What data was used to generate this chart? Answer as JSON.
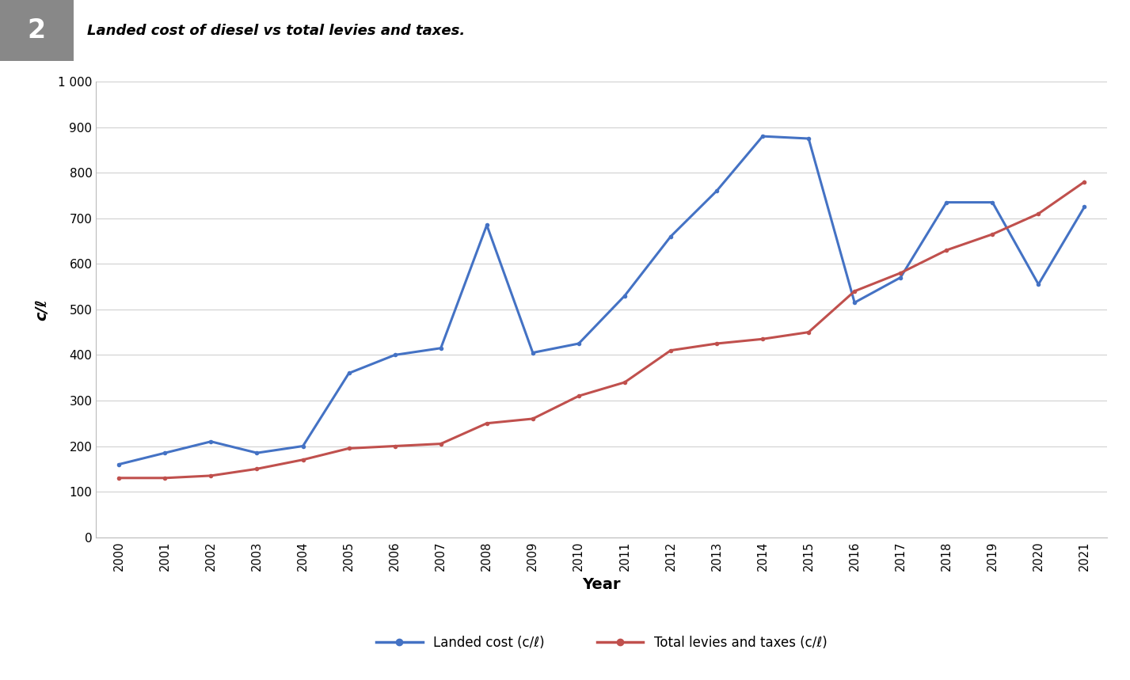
{
  "years": [
    2000,
    2001,
    2002,
    2003,
    2004,
    2005,
    2006,
    2007,
    2008,
    2009,
    2010,
    2011,
    2012,
    2013,
    2014,
    2015,
    2016,
    2017,
    2018,
    2019,
    2020,
    2021
  ],
  "landed_cost": [
    160,
    185,
    210,
    185,
    200,
    360,
    400,
    415,
    685,
    405,
    425,
    530,
    660,
    760,
    880,
    875,
    515,
    570,
    735,
    735,
    555,
    725
  ],
  "total_levies": [
    130,
    130,
    135,
    150,
    170,
    195,
    200,
    205,
    250,
    260,
    310,
    340,
    410,
    425,
    435,
    450,
    540,
    580,
    630,
    665,
    710,
    780
  ],
  "landed_color": "#4472C4",
  "levies_color": "#C0504D",
  "title": "Landed cost of diesel vs total levies and taxes.",
  "figure_label": "2",
  "xlabel": "Year",
  "ylabel": "c/ℓ",
  "ylim": [
    0,
    1000
  ],
  "ytick_values": [
    0,
    100,
    200,
    300,
    400,
    500,
    600,
    700,
    800,
    900,
    1000
  ],
  "legend_landed": "Landed cost (c/ℓ)",
  "legend_levies": "Total levies and taxes (c/ℓ)",
  "background_color": "#ffffff",
  "header_bg": "#888888",
  "line_width": 2.2,
  "marker_size": 4
}
